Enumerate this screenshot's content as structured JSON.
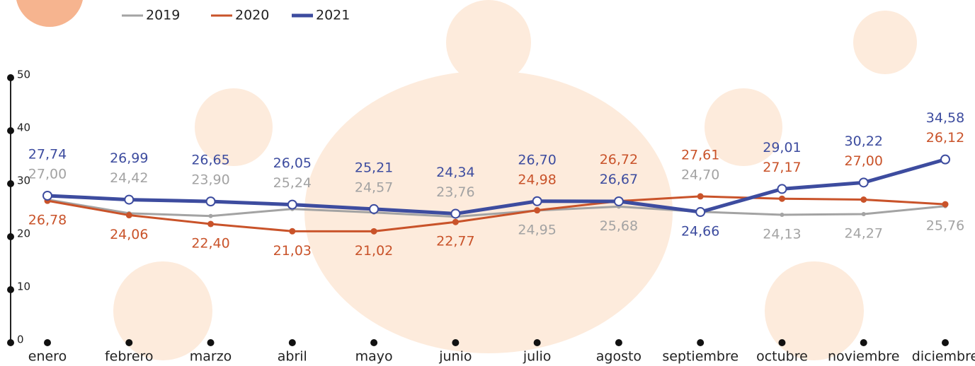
{
  "chart_data": {
    "type": "line",
    "categories": [
      "enero",
      "febrero",
      "marzo",
      "abril",
      "mayo",
      "junio",
      "julio",
      "agosto",
      "septiembre",
      "octubre",
      "noviembre",
      "diciembre"
    ],
    "series": [
      {
        "name": "2019",
        "color": "#a3a3a3",
        "values": [
          27.0,
          24.42,
          23.9,
          25.24,
          24.57,
          23.76,
          24.95,
          25.68,
          24.7,
          24.13,
          24.27,
          25.76
        ],
        "value_labels": [
          "27,00",
          "24,42",
          "23,90",
          "25,24",
          "24,57",
          "23,76",
          "24,95",
          "25,68",
          "24,70",
          "24,13",
          "24,27",
          "25,76"
        ]
      },
      {
        "name": "2020",
        "color": "#c9532a",
        "values": [
          26.78,
          24.06,
          22.4,
          21.03,
          21.02,
          22.77,
          24.98,
          26.72,
          27.61,
          27.17,
          27.0,
          26.12
        ],
        "value_labels": [
          "26,78",
          "24,06",
          "22,40",
          "21,03",
          "21,02",
          "22,77",
          "24,98",
          "26,72",
          "27,61",
          "27,17",
          "27,00",
          "26,12"
        ]
      },
      {
        "name": "2021",
        "color": "#3d4c9f",
        "values": [
          27.74,
          26.99,
          26.65,
          26.05,
          25.21,
          24.34,
          26.7,
          26.67,
          24.66,
          29.01,
          30.22,
          34.58
        ],
        "value_labels": [
          "27,74",
          "26,99",
          "26,65",
          "26,05",
          "25,21",
          "24,34",
          "26,70",
          "26,67",
          "24,66",
          "29,01",
          "30,22",
          "34,58"
        ]
      }
    ],
    "ylim": [
      0,
      50
    ],
    "yticks": [
      0,
      10,
      20,
      30,
      40,
      50
    ]
  }
}
